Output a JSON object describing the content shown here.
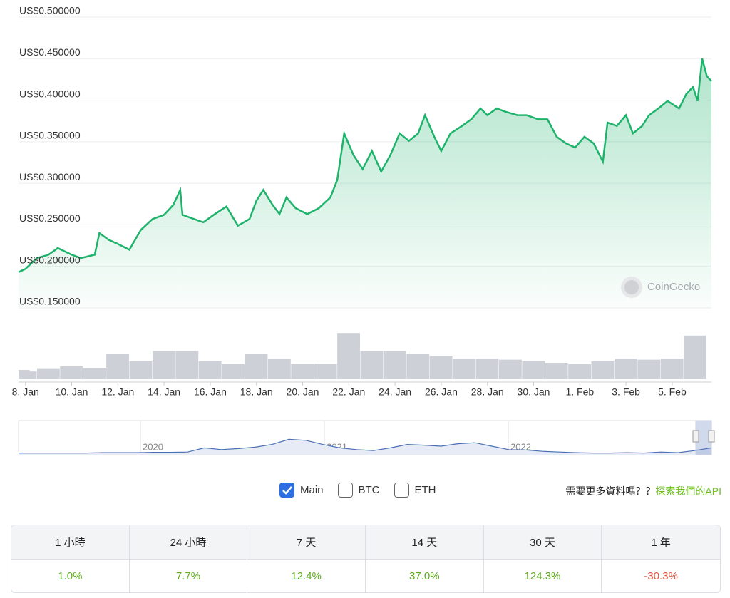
{
  "chart_data": {
    "type": "line",
    "yticks": [
      {
        "value": 0.5,
        "label": "US$0.500000"
      },
      {
        "value": 0.45,
        "label": "US$0.450000"
      },
      {
        "value": 0.4,
        "label": "US$0.400000"
      },
      {
        "value": 0.35,
        "label": "US$0.350000"
      },
      {
        "value": 0.3,
        "label": "US$0.300000"
      },
      {
        "value": 0.25,
        "label": "US$0.250000"
      },
      {
        "value": 0.2,
        "label": "US$0.200000"
      },
      {
        "value": 0.15,
        "label": "US$0.150000"
      }
    ],
    "ylim": [
      0.15,
      0.5
    ],
    "grid": true,
    "xlim": [
      7.7,
      37.7
    ],
    "xticks": [
      {
        "value": 8,
        "label": "8. Jan"
      },
      {
        "value": 10,
        "label": "10. Jan"
      },
      {
        "value": 12,
        "label": "12. Jan"
      },
      {
        "value": 14,
        "label": "14. Jan"
      },
      {
        "value": 16,
        "label": "16. Jan"
      },
      {
        "value": 18,
        "label": "18. Jan"
      },
      {
        "value": 20,
        "label": "20. Jan"
      },
      {
        "value": 22,
        "label": "22. Jan"
      },
      {
        "value": 24,
        "label": "24. Jan"
      },
      {
        "value": 26,
        "label": "26. Jan"
      },
      {
        "value": 28,
        "label": "28. Jan"
      },
      {
        "value": 30,
        "label": "30. Jan"
      },
      {
        "value": 32,
        "label": "1. Feb"
      },
      {
        "value": 34,
        "label": "3. Feb"
      },
      {
        "value": 36,
        "label": "5. Feb"
      }
    ],
    "y2lim": [
      0,
      100
    ],
    "series": [
      {
        "color": "#1eb36b",
        "x": [
          7.7,
          8.0,
          8.5,
          9.0,
          9.4,
          10.0,
          10.4,
          11.0,
          11.2,
          11.6,
          12.0,
          12.5,
          13.0,
          13.5,
          14.0,
          14.4,
          14.7,
          14.8,
          15.3,
          15.7,
          16.2,
          16.7,
          17.2,
          17.7,
          18.0,
          18.3,
          18.7,
          19.0,
          19.3,
          19.7,
          20.2,
          20.7,
          21.2,
          21.5,
          21.8,
          22.2,
          22.6,
          23.0,
          23.4,
          23.8,
          24.2,
          24.6,
          25.0,
          25.3,
          25.7,
          26.0,
          26.4,
          26.9,
          27.3,
          27.7,
          28.0,
          28.4,
          28.8,
          29.3,
          29.7,
          30.2,
          30.6,
          31.0,
          31.4,
          31.8,
          32.2,
          32.6,
          33.0,
          33.2,
          33.6,
          34.0,
          34.3,
          34.7,
          35.0,
          35.4,
          35.8,
          36.3,
          36.6,
          36.9,
          37.1,
          37.3,
          37.5,
          37.7
        ],
        "values": [
          0.193,
          0.197,
          0.21,
          0.214,
          0.222,
          0.214,
          0.21,
          0.214,
          0.24,
          0.232,
          0.227,
          0.22,
          0.244,
          0.257,
          0.262,
          0.274,
          0.292,
          0.262,
          0.257,
          0.253,
          0.263,
          0.272,
          0.249,
          0.257,
          0.279,
          0.292,
          0.274,
          0.263,
          0.283,
          0.27,
          0.263,
          0.27,
          0.283,
          0.304,
          0.36,
          0.334,
          0.317,
          0.339,
          0.314,
          0.334,
          0.36,
          0.351,
          0.36,
          0.382,
          0.356,
          0.339,
          0.36,
          0.369,
          0.377,
          0.39,
          0.382,
          0.39,
          0.386,
          0.382,
          0.382,
          0.377,
          0.377,
          0.356,
          0.348,
          0.343,
          0.356,
          0.348,
          0.326,
          0.373,
          0.369,
          0.382,
          0.36,
          0.369,
          0.382,
          0.39,
          0.399,
          0.39,
          0.407,
          0.416,
          0.399,
          0.45,
          0.429,
          0.423
        ]
      },
      {
        "axis": "y2",
        "color": "#cdd0d7",
        "x": [
          7.7,
          8,
          9,
          10,
          11,
          12,
          13,
          14,
          15,
          16,
          17,
          18,
          19,
          20,
          21,
          22,
          23,
          24,
          25,
          26,
          27,
          28,
          29,
          30,
          31,
          32,
          33,
          34,
          35,
          36,
          37
        ],
        "values": [
          18,
          15,
          20,
          25,
          22,
          50,
          35,
          55,
          55,
          35,
          30,
          50,
          40,
          30,
          30,
          90,
          55,
          55,
          50,
          45,
          40,
          40,
          38,
          35,
          32,
          30,
          35,
          40,
          38,
          40,
          85
        ]
      }
    ],
    "watermark": "CoinGecko"
  },
  "navigator": {
    "color": "#4a6fb5",
    "ylim": [
      0,
      100
    ],
    "values": [
      5,
      5,
      5,
      5,
      5,
      6,
      6,
      6,
      7,
      7,
      8,
      20,
      15,
      18,
      22,
      30,
      45,
      42,
      30,
      20,
      15,
      12,
      20,
      30,
      28,
      25,
      32,
      35,
      25,
      15,
      14,
      10,
      8,
      6,
      5,
      5,
      6,
      5,
      8,
      6,
      12,
      20
    ],
    "years": [
      "2020",
      "2021",
      "2022"
    ]
  },
  "options": [
    {
      "label": "Main",
      "checked": true
    },
    {
      "label": "BTC",
      "checked": false
    },
    {
      "label": "ETH",
      "checked": false
    }
  ],
  "api_prompt": "需要更多資料嗎？？",
  "api_link": "探索我們的API",
  "table": {
    "headers": [
      "1 小時",
      "24 小時",
      "7 天",
      "14 天",
      "30 天",
      "1 年"
    ],
    "rows": [
      [
        "1.0%",
        "7.7%",
        "12.4%",
        "37.0%",
        "124.3%",
        "-30.3%"
      ]
    ],
    "colors": [
      "#5cab1c",
      "#5cab1c",
      "#5cab1c",
      "#5cab1c",
      "#5cab1c",
      "#e15241"
    ]
  }
}
